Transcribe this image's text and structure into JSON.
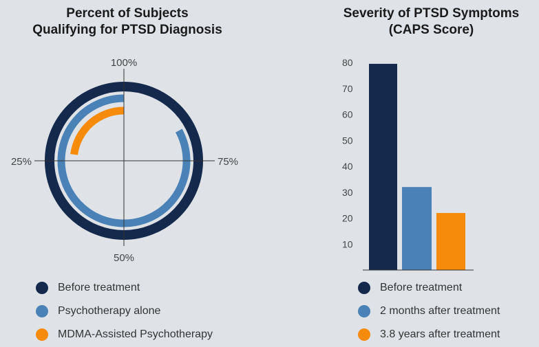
{
  "chart_data": [
    {
      "type": "radial-bar",
      "title": "Percent of Subjects\nQualifying for PTSD Diagnosis",
      "title_lines": [
        "Percent of Subjects",
        "Qualifying for PTSD Diagnosis"
      ],
      "axis_labels": {
        "top": "100%",
        "right": "75%",
        "bottom": "50%",
        "left": "25%"
      },
      "series": [
        {
          "name": "Before treatment",
          "value": 100,
          "color": "#14294b"
        },
        {
          "name": "Psychotherapy alone",
          "value": 83,
          "color": "#4a81b6"
        },
        {
          "name": "MDMA-Assisted Psychotherapy",
          "value": 23,
          "color": "#f58a0b"
        }
      ],
      "legend_placement": "bottom"
    },
    {
      "type": "bar",
      "title_lines": [
        "Severity of PTSD Symptoms",
        "(CAPS Score)"
      ],
      "yticks": [
        "80",
        "70",
        "60",
        "50",
        "40",
        "30",
        "20",
        "10"
      ],
      "ylim": [
        0,
        80
      ],
      "series": [
        {
          "name": "Before treatment",
          "value": 79.5,
          "color": "#14294b"
        },
        {
          "name": "2 months after treatment",
          "value": 32,
          "color": "#4a81b6"
        },
        {
          "name": "3.8 years after treatment",
          "value": 22,
          "color": "#f58a0b"
        }
      ],
      "grid": false,
      "legend_placement": "bottom"
    }
  ]
}
